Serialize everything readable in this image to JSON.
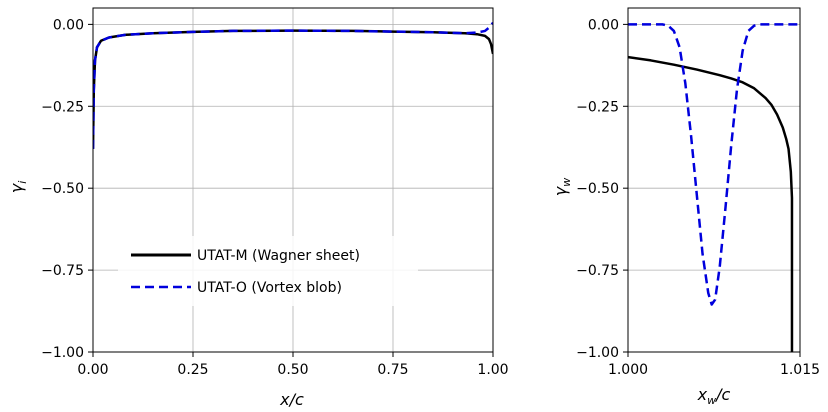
{
  "chart_data": [
    {
      "type": "line",
      "xlabel": "x/c",
      "ylabel": "γ_i",
      "xlim": [
        0.0,
        1.0
      ],
      "ylim": [
        -1.0,
        0.05
      ],
      "xticks": [
        0.0,
        0.25,
        0.5,
        0.75,
        1.0
      ],
      "xtick_labels": [
        "0.00",
        "0.25",
        "0.50",
        "0.75",
        "1.00"
      ],
      "yticks": [
        0.0,
        -0.25,
        -0.5,
        -0.75,
        -1.0
      ],
      "ytick_labels": [
        "0.00",
        "−0.25",
        "−0.50",
        "−0.75",
        "−1.00"
      ],
      "grid": true,
      "legend_position": "lower-left",
      "series": [
        {
          "name": "UTAT-M (Wagner sheet)",
          "color": "#000000",
          "dash": "solid",
          "points": [
            [
              0.0,
              -0.38
            ],
            [
              0.002,
              -0.2
            ],
            [
              0.005,
              -0.11
            ],
            [
              0.01,
              -0.07
            ],
            [
              0.02,
              -0.05
            ],
            [
              0.04,
              -0.04
            ],
            [
              0.08,
              -0.032
            ],
            [
              0.15,
              -0.027
            ],
            [
              0.25,
              -0.023
            ],
            [
              0.35,
              -0.02
            ],
            [
              0.5,
              -0.019
            ],
            [
              0.65,
              -0.02
            ],
            [
              0.75,
              -0.022
            ],
            [
              0.85,
              -0.024
            ],
            [
              0.93,
              -0.027
            ],
            [
              0.96,
              -0.03
            ],
            [
              0.98,
              -0.035
            ],
            [
              0.99,
              -0.045
            ],
            [
              0.995,
              -0.06
            ],
            [
              1.0,
              -0.09
            ]
          ]
        },
        {
          "name": "UTAT-O (Vortex blob)",
          "color": "#0000dd",
          "dash": "dashed",
          "points": [
            [
              0.0,
              -0.38
            ],
            [
              0.002,
              -0.2
            ],
            [
              0.005,
              -0.11
            ],
            [
              0.01,
              -0.07
            ],
            [
              0.02,
              -0.05
            ],
            [
              0.04,
              -0.04
            ],
            [
              0.08,
              -0.032
            ],
            [
              0.15,
              -0.027
            ],
            [
              0.25,
              -0.023
            ],
            [
              0.35,
              -0.02
            ],
            [
              0.5,
              -0.019
            ],
            [
              0.65,
              -0.02
            ],
            [
              0.75,
              -0.022
            ],
            [
              0.85,
              -0.024
            ],
            [
              0.93,
              -0.027
            ],
            [
              0.96,
              -0.025
            ],
            [
              0.98,
              -0.02
            ],
            [
              0.99,
              -0.01
            ],
            [
              1.0,
              0.005
            ]
          ]
        }
      ]
    },
    {
      "type": "line",
      "xlabel": "x_w/c",
      "ylabel": "γ_w",
      "xlim": [
        1.0,
        1.015
      ],
      "ylim": [
        -1.0,
        0.05
      ],
      "xticks": [
        1.0,
        1.015
      ],
      "xtick_labels": [
        "1.000",
        "1.015"
      ],
      "yticks": [
        0.0,
        -0.25,
        -0.5,
        -0.75,
        -1.0
      ],
      "ytick_labels": [
        "0.00",
        "−0.25",
        "−0.50",
        "−0.75",
        "−1.00"
      ],
      "grid": true,
      "series": [
        {
          "name": "UTAT-M (Wagner sheet)",
          "color": "#000000",
          "dash": "solid",
          "points": [
            [
              1.0,
              -0.1
            ],
            [
              1.002,
              -0.11
            ],
            [
              1.004,
              -0.123
            ],
            [
              1.006,
              -0.138
            ],
            [
              1.008,
              -0.155
            ],
            [
              1.009,
              -0.165
            ],
            [
              1.01,
              -0.177
            ],
            [
              1.011,
              -0.195
            ],
            [
              1.012,
              -0.225
            ],
            [
              1.0125,
              -0.245
            ],
            [
              1.013,
              -0.275
            ],
            [
              1.0135,
              -0.315
            ],
            [
              1.0138,
              -0.35
            ],
            [
              1.014,
              -0.38
            ],
            [
              1.0142,
              -0.45
            ],
            [
              1.0143,
              -0.53
            ],
            [
              1.0143,
              -1.0
            ]
          ]
        },
        {
          "name": "UTAT-O (Vortex blob)",
          "color": "#0000dd",
          "dash": "dashed",
          "points": [
            [
              1.0,
              0.0
            ],
            [
              1.003,
              0.0
            ],
            [
              1.0035,
              -0.004
            ],
            [
              1.004,
              -0.02
            ],
            [
              1.0045,
              -0.07
            ],
            [
              1.005,
              -0.18
            ],
            [
              1.0055,
              -0.34
            ],
            [
              1.006,
              -0.52
            ],
            [
              1.0065,
              -0.7
            ],
            [
              1.007,
              -0.82
            ],
            [
              1.0073,
              -0.855
            ],
            [
              1.0076,
              -0.84
            ],
            [
              1.008,
              -0.74
            ],
            [
              1.0085,
              -0.56
            ],
            [
              1.009,
              -0.37
            ],
            [
              1.0095,
              -0.2
            ],
            [
              1.01,
              -0.08
            ],
            [
              1.0105,
              -0.02
            ],
            [
              1.011,
              -0.004
            ],
            [
              1.0115,
              0.0
            ],
            [
              1.015,
              0.0
            ]
          ]
        }
      ]
    }
  ]
}
